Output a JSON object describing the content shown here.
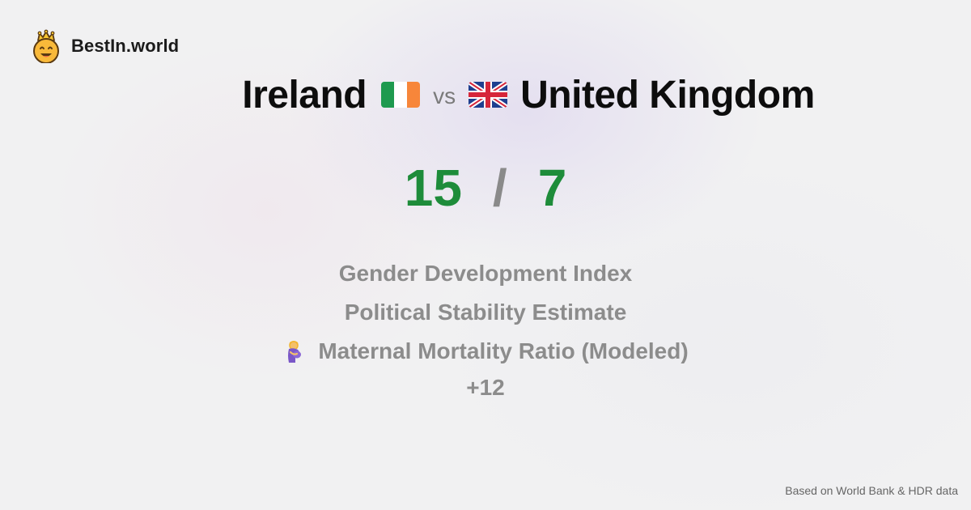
{
  "brand": {
    "name": "BestIn.world",
    "logo_icon": "crowned-smiley-icon"
  },
  "comparison": {
    "left_country": "Ireland",
    "left_flag": "ireland-flag-icon",
    "vs_label": "vs",
    "right_country": "United Kingdom",
    "right_flag": "united-kingdom-flag-icon"
  },
  "score": {
    "left": "15",
    "separator": "/",
    "right": "7",
    "color": "#1e8c3a"
  },
  "metrics": [
    {
      "label": "Gender Development Index"
    },
    {
      "label": "Political Stability Estimate"
    },
    {
      "label": "Maternal Mortality Ratio (Modeled)",
      "icon": "pregnant-woman-icon"
    }
  ],
  "more_label": "+12",
  "source": "Based on World Bank & HDR data"
}
